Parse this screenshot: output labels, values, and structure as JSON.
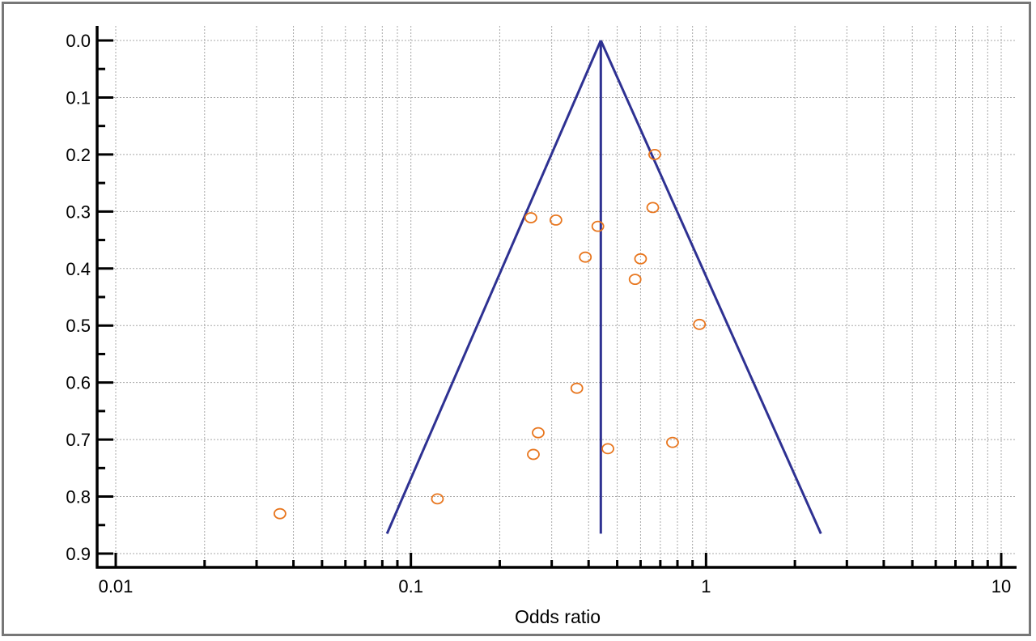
{
  "chart_data": {
    "type": "scatter",
    "subtype": "funnel-plot",
    "title": "",
    "xlabel": "Odds ratio",
    "ylabel": "",
    "x_scale": "log",
    "xlim": [
      0.01,
      10
    ],
    "ylim": [
      0.9,
      0.0
    ],
    "x_ticks": [
      0.01,
      0.1,
      1,
      10
    ],
    "x_tick_labels": [
      "0.01",
      "0.1",
      "1",
      "10"
    ],
    "y_ticks": [
      0.0,
      0.1,
      0.2,
      0.3,
      0.4,
      0.5,
      0.6,
      0.7,
      0.8,
      0.9
    ],
    "y_tick_labels": [
      "0.0",
      "0.1",
      "0.2",
      "0.3",
      "0.4",
      "0.5",
      "0.6",
      "0.7",
      "0.8",
      "0.9"
    ],
    "grid": true,
    "colors": {
      "points": "#E8761E",
      "funnel": "#2E3192",
      "grid": "#A8A8A8",
      "axis": "#000000",
      "frame": "#777777"
    },
    "funnel": {
      "pooled_or": 0.44,
      "apex_y": 0.0,
      "base_y": 0.865,
      "left_base_or": 0.083,
      "right_base_or": 2.45
    },
    "points": [
      {
        "or": 0.67,
        "se": 0.2
      },
      {
        "or": 0.66,
        "se": 0.293
      },
      {
        "or": 0.255,
        "se": 0.311
      },
      {
        "or": 0.31,
        "se": 0.315
      },
      {
        "or": 0.43,
        "se": 0.326
      },
      {
        "or": 0.39,
        "se": 0.38
      },
      {
        "or": 0.6,
        "se": 0.383
      },
      {
        "or": 0.575,
        "se": 0.419
      },
      {
        "or": 0.95,
        "se": 0.498
      },
      {
        "or": 0.365,
        "se": 0.61
      },
      {
        "or": 0.27,
        "se": 0.688
      },
      {
        "or": 0.77,
        "se": 0.705
      },
      {
        "or": 0.465,
        "se": 0.716
      },
      {
        "or": 0.26,
        "se": 0.726
      },
      {
        "or": 0.123,
        "se": 0.804
      },
      {
        "or": 0.036,
        "se": 0.83
      }
    ]
  }
}
